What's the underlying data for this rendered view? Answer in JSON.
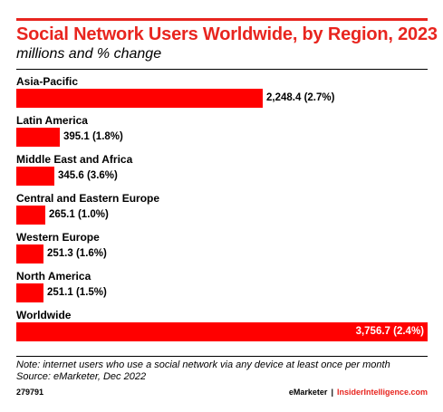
{
  "header": {
    "title": "Social Network Users Worldwide, by Region, 2023",
    "subtitle": "millions and % change"
  },
  "chart_data": {
    "type": "bar",
    "orientation": "horizontal",
    "title": "Social Network Users Worldwide, by Region, 2023",
    "subtitle": "millions and % change",
    "categories": [
      "Asia-Pacific",
      "Latin America",
      "Middle East and Africa",
      "Central and Eastern Europe",
      "Western Europe",
      "North America",
      "Worldwide"
    ],
    "values": [
      2248.4,
      395.1,
      345.6,
      265.1,
      251.3,
      251.1,
      3756.7
    ],
    "labels": [
      "2,248.4 (2.7%)",
      "395.1 (1.8%)",
      "345.6 (3.6%)",
      "265.1 (1.0%)",
      "251.3 (1.6%)",
      "251.1 (1.5%)",
      "3,756.7 (2.4%)"
    ],
    "xlim": [
      0,
      3756.7
    ],
    "bar_color": "#ff0000",
    "grid": false,
    "legend": "none"
  },
  "footer": {
    "note": "Note: internet users who use a social network via any device at least once per month",
    "source": "Source: eMarketer, Dec 2022",
    "chart_id": "279791",
    "brand_left": "eMarketer",
    "brand_separator": "|",
    "brand_right": "InsiderIntelligence.com"
  },
  "colors": {
    "accent": "#e8251f",
    "bar": "#ff0000"
  }
}
